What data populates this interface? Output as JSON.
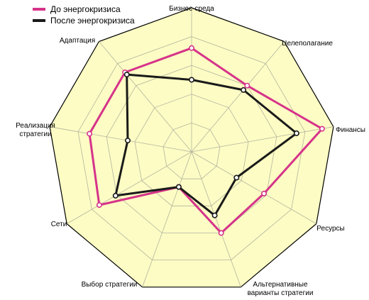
{
  "chart_data": {
    "type": "radar",
    "title": "",
    "axes": [
      "Бизнес-среда",
      "Целеполагание",
      "Финансы",
      "Ресурсы",
      "Альтернативные варианты стратегии",
      "Выбор стратегии",
      "Сети",
      "Реализация стратегии",
      "Адаптация"
    ],
    "scale": {
      "min": 0,
      "max": 10,
      "rings": 5,
      "grid": true
    },
    "series": [
      {
        "name": "До энергокризиса",
        "color": "#d6338a",
        "values": [
          7.2,
          6.0,
          9.2,
          5.8,
          6.0,
          2.6,
          7.4,
          7.2,
          7.2
        ]
      },
      {
        "name": "После энергокризиса",
        "color": "#1a1a1a",
        "values": [
          5.0,
          5.6,
          7.4,
          3.6,
          4.7,
          2.6,
          6.1,
          4.5,
          7.0
        ]
      }
    ],
    "legend": {
      "position": "top-left"
    },
    "colors": {
      "fill": "#fcfcc4",
      "grid": "#b4b4a0",
      "outline": "#000000"
    }
  }
}
